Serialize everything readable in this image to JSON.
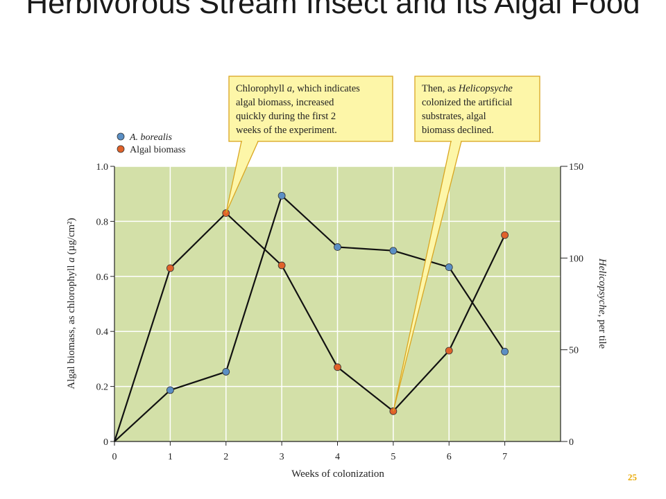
{
  "slide": {
    "title": "Herbivorous Stream Insect and Its Algal Food",
    "page_number": "25"
  },
  "chart_data": {
    "type": "line",
    "xlabel": "Weeks of colonization",
    "ylabel_left": "Algal biomass, as chlorophyll a (µg/cm²)",
    "ylabel_right_italic": "Helicopsyche",
    "ylabel_right_rest": ", per tile",
    "x_ticks": [
      0,
      1,
      2,
      3,
      4,
      5,
      6,
      7
    ],
    "xlim": [
      0,
      8
    ],
    "ylim_left": [
      0,
      1.0
    ],
    "y_ticks_left": [
      "0",
      "0.2",
      "0.4",
      "0.6",
      "0.8",
      "1.0"
    ],
    "y_tick_values_left": [
      0,
      0.2,
      0.4,
      0.6,
      0.8,
      1.0
    ],
    "ylim_right": [
      0,
      150
    ],
    "y_ticks_right": [
      "0",
      "50",
      "100",
      "150"
    ],
    "y_tick_values_right": [
      0,
      50,
      100,
      150
    ],
    "grid": true,
    "plot_background": "#d3e0a8",
    "grid_color": "#ffffff",
    "line_color": "#111111",
    "legend_placement": "top-left",
    "series": [
      {
        "name": "A. borealis",
        "axis": "right",
        "color": "#5b8fc4",
        "x": [
          0,
          1,
          2,
          3,
          4,
          5,
          6,
          7
        ],
        "values": [
          0,
          28,
          38,
          134,
          106,
          104,
          95,
          49
        ]
      },
      {
        "name": "Algal biomass",
        "axis": "left",
        "color": "#e0622a",
        "x": [
          0,
          1,
          2,
          3,
          4,
          5,
          6,
          7
        ],
        "values": [
          0,
          0.63,
          0.83,
          0.64,
          0.27,
          0.11,
          0.33,
          0.75
        ]
      }
    ],
    "annotations": [
      {
        "lines": [
          "Chlorophyll |a|, which indicates",
          "algal biomass, increased",
          "quickly during the first 2",
          "weeks of the experiment."
        ],
        "points_to": {
          "x": 2,
          "y": 0.83
        },
        "fill": "#fdf6a8",
        "border": "#d9a520"
      },
      {
        "lines": [
          "Then, as |Helicopsyche|",
          "colonized the artificial",
          "substrates, algal",
          "biomass declined."
        ],
        "points_to": {
          "x": 5,
          "y": 0.11
        },
        "fill": "#fdf6a8",
        "border": "#d9a520"
      }
    ]
  }
}
